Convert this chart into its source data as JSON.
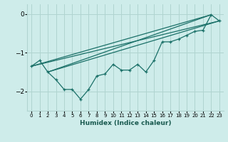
{
  "xlabel": "Humidex (Indice chaleur)",
  "ylabel": "",
  "bg_color": "#ceecea",
  "grid_color": "#b0d4d0",
  "line_color": "#1a7068",
  "xlim": [
    -0.5,
    23.5
  ],
  "ylim": [
    -2.5,
    0.25
  ],
  "yticks": [
    0,
    -1,
    -2
  ],
  "xticks": [
    0,
    1,
    2,
    3,
    4,
    5,
    6,
    7,
    8,
    9,
    10,
    11,
    12,
    13,
    14,
    15,
    16,
    17,
    18,
    19,
    20,
    21,
    22,
    23
  ],
  "series": [
    [
      0,
      -1.35
    ],
    [
      1,
      -1.2
    ],
    [
      2,
      -1.5
    ],
    [
      3,
      -1.7
    ],
    [
      4,
      -1.95
    ],
    [
      5,
      -1.95
    ],
    [
      6,
      -2.2
    ],
    [
      7,
      -1.95
    ],
    [
      8,
      -1.6
    ],
    [
      9,
      -1.55
    ],
    [
      10,
      -1.3
    ],
    [
      11,
      -1.45
    ],
    [
      12,
      -1.45
    ],
    [
      13,
      -1.3
    ],
    [
      14,
      -1.5
    ],
    [
      15,
      -1.2
    ],
    [
      16,
      -0.72
    ],
    [
      17,
      -0.72
    ],
    [
      18,
      -0.65
    ],
    [
      19,
      -0.55
    ],
    [
      20,
      -0.45
    ],
    [
      21,
      -0.42
    ],
    [
      22,
      -0.02
    ],
    [
      23,
      -0.18
    ]
  ],
  "lines": [
    [
      [
        0,
        -1.35
      ],
      [
        22,
        -0.02
      ]
    ],
    [
      [
        0,
        -1.35
      ],
      [
        23,
        -0.18
      ]
    ],
    [
      [
        2,
        -1.5
      ],
      [
        22,
        -0.02
      ]
    ],
    [
      [
        2,
        -1.5
      ],
      [
        23,
        -0.18
      ]
    ]
  ]
}
